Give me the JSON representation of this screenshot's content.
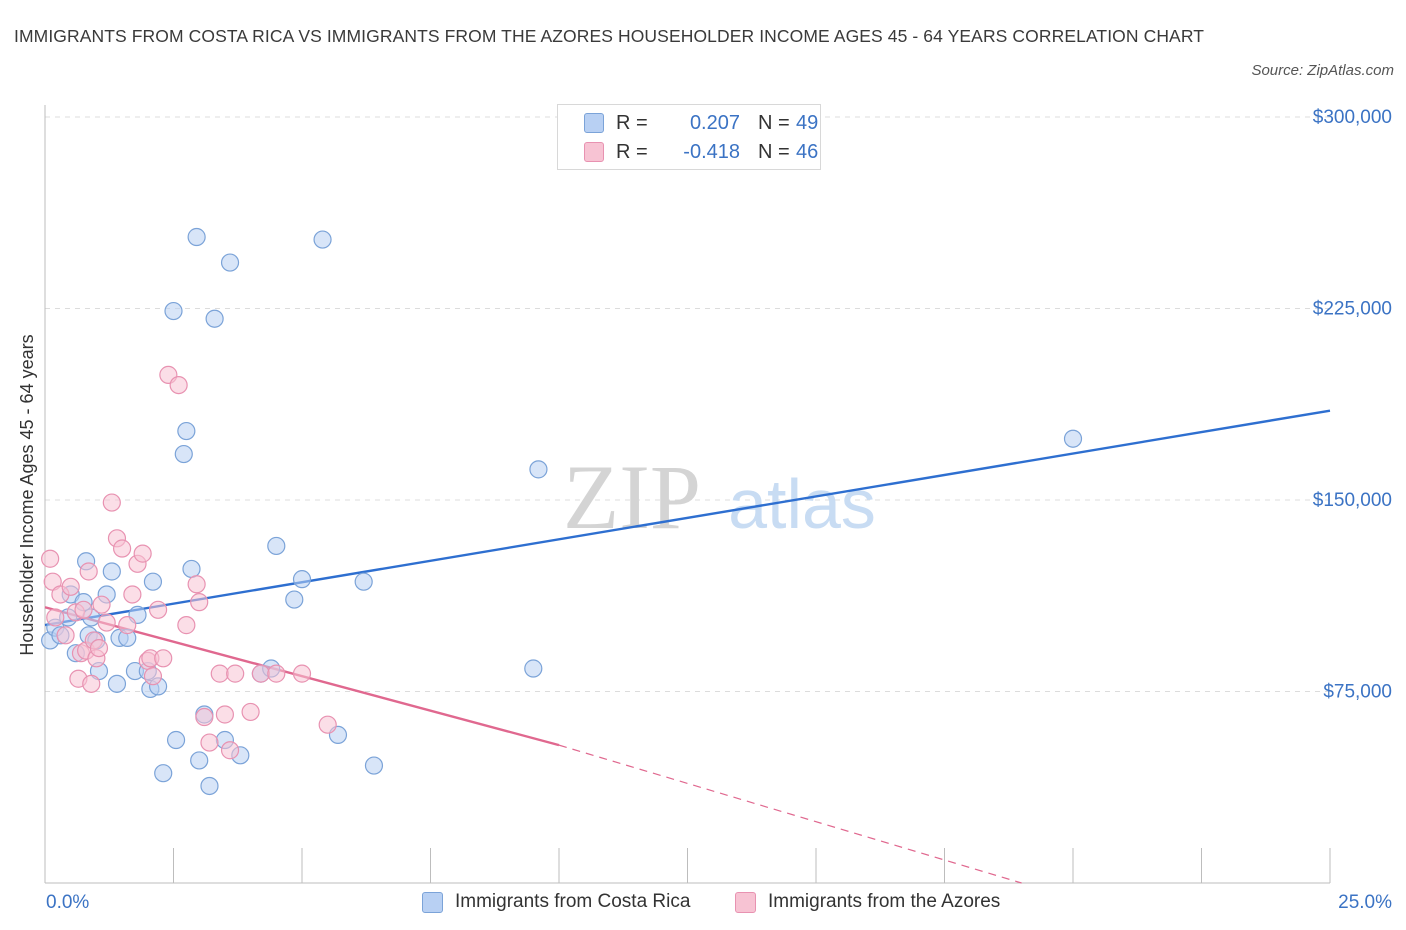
{
  "title": "IMMIGRANTS FROM COSTA RICA VS IMMIGRANTS FROM THE AZORES HOUSEHOLDER INCOME AGES 45 - 64 YEARS CORRELATION CHART",
  "source": "Source: ZipAtlas.com",
  "watermark": {
    "zip": "ZIP",
    "atlas": "atlas"
  },
  "colors": {
    "blue_fill": "#b8d0f3",
    "blue_stroke": "#7ba3d8",
    "blue_line": "#2e6fd0",
    "pink_fill": "#f7c3d3",
    "pink_stroke": "#e892b1",
    "pink_line": "#e0688f",
    "axis_text": "#3b73c4",
    "grid": "#dcdcdc"
  },
  "legend": {
    "rows": [
      {
        "r_label": "R =",
        "r_value": "0.207",
        "n_label": "N =",
        "n_value": "49",
        "color": "#b8d0f3",
        "stroke": "#7ba3d8"
      },
      {
        "r_label": "R =",
        "r_value": "-0.418",
        "n_label": "N =",
        "n_value": "46",
        "color": "#f7c3d3",
        "stroke": "#e892b1"
      }
    ]
  },
  "bottom_legend": [
    {
      "label": "Immigrants from Costa Rica",
      "color": "#b8d0f3",
      "stroke": "#7ba3d8"
    },
    {
      "label": "Immigrants from the Azores",
      "color": "#f7c3d3",
      "stroke": "#e892b1"
    }
  ],
  "chart_data": {
    "type": "scatter",
    "title": "IMMIGRANTS FROM COSTA RICA VS IMMIGRANTS FROM THE AZORES HOUSEHOLDER INCOME AGES 45 - 64 YEARS CORRELATION CHART",
    "xlabel": "",
    "ylabel": "Householder Income Ages 45 - 64 years",
    "xlim": [
      0,
      25
    ],
    "ylim": [
      0,
      300000
    ],
    "x_tick_labels": [
      "0.0%",
      "25.0%"
    ],
    "y_ticks": [
      75000,
      150000,
      225000,
      300000
    ],
    "y_tick_labels": [
      "$75,000",
      "$150,000",
      "$225,000",
      "$300,000"
    ],
    "grid": true,
    "series": [
      {
        "name": "Immigrants from Costa Rica",
        "color": "#b8d0f3",
        "x": [
          0.1,
          0.2,
          0.3,
          0.45,
          0.5,
          0.6,
          0.75,
          0.8,
          0.85,
          0.9,
          1.0,
          1.05,
          1.2,
          1.3,
          1.4,
          1.45,
          1.6,
          1.75,
          1.8,
          2.0,
          2.05,
          2.1,
          2.2,
          2.3,
          2.5,
          2.55,
          2.7,
          2.75,
          2.85,
          2.95,
          3.0,
          3.1,
          3.2,
          3.3,
          3.5,
          3.6,
          3.8,
          4.2,
          4.4,
          4.5,
          4.85,
          5.0,
          5.4,
          5.7,
          6.2,
          6.4,
          9.5,
          9.6,
          20.0
        ],
        "y": [
          95000,
          100000,
          97000,
          104000,
          113000,
          90000,
          110000,
          126000,
          97000,
          104000,
          95000,
          83000,
          113000,
          122000,
          78000,
          96000,
          96000,
          83000,
          105000,
          83000,
          76000,
          118000,
          77000,
          43000,
          224000,
          56000,
          168000,
          177000,
          123000,
          253000,
          48000,
          66000,
          38000,
          221000,
          56000,
          243000,
          50000,
          82000,
          84000,
          132000,
          111000,
          119000,
          252000,
          58000,
          118000,
          46000,
          84000,
          162000,
          174000
        ]
      },
      {
        "name": "Immigrants from the Azores",
        "color": "#f7c3d3",
        "x": [
          0.1,
          0.15,
          0.2,
          0.3,
          0.4,
          0.5,
          0.6,
          0.65,
          0.7,
          0.75,
          0.8,
          0.85,
          0.9,
          0.95,
          1.0,
          1.05,
          1.1,
          1.2,
          1.3,
          1.4,
          1.5,
          1.6,
          1.7,
          1.8,
          1.9,
          2.0,
          2.05,
          2.1,
          2.2,
          2.3,
          2.4,
          2.6,
          2.75,
          2.95,
          3.0,
          3.1,
          3.2,
          3.4,
          3.5,
          3.6,
          3.7,
          4.0,
          4.2,
          4.5,
          5.0,
          5.5
        ],
        "y": [
          127000,
          118000,
          104000,
          113000,
          97000,
          116000,
          106000,
          80000,
          90000,
          107000,
          91000,
          122000,
          78000,
          95000,
          88000,
          92000,
          109000,
          102000,
          149000,
          135000,
          131000,
          101000,
          113000,
          125000,
          129000,
          87000,
          88000,
          81000,
          107000,
          88000,
          199000,
          195000,
          101000,
          117000,
          110000,
          65000,
          55000,
          82000,
          66000,
          52000,
          82000,
          67000,
          82000,
          82000,
          82000,
          62000
        ]
      }
    ],
    "trend_lines": [
      {
        "series": "Immigrants from Costa Rica",
        "x": [
          0,
          25
        ],
        "y": [
          101000,
          185000
        ]
      },
      {
        "series": "Immigrants from the Azores",
        "x": [
          0,
          10
        ],
        "y": [
          108000,
          54000
        ]
      },
      {
        "series": "Immigrants from the Azores",
        "x": [
          10,
          19
        ],
        "y": [
          54000,
          0
        ],
        "style": "dashed"
      }
    ]
  }
}
